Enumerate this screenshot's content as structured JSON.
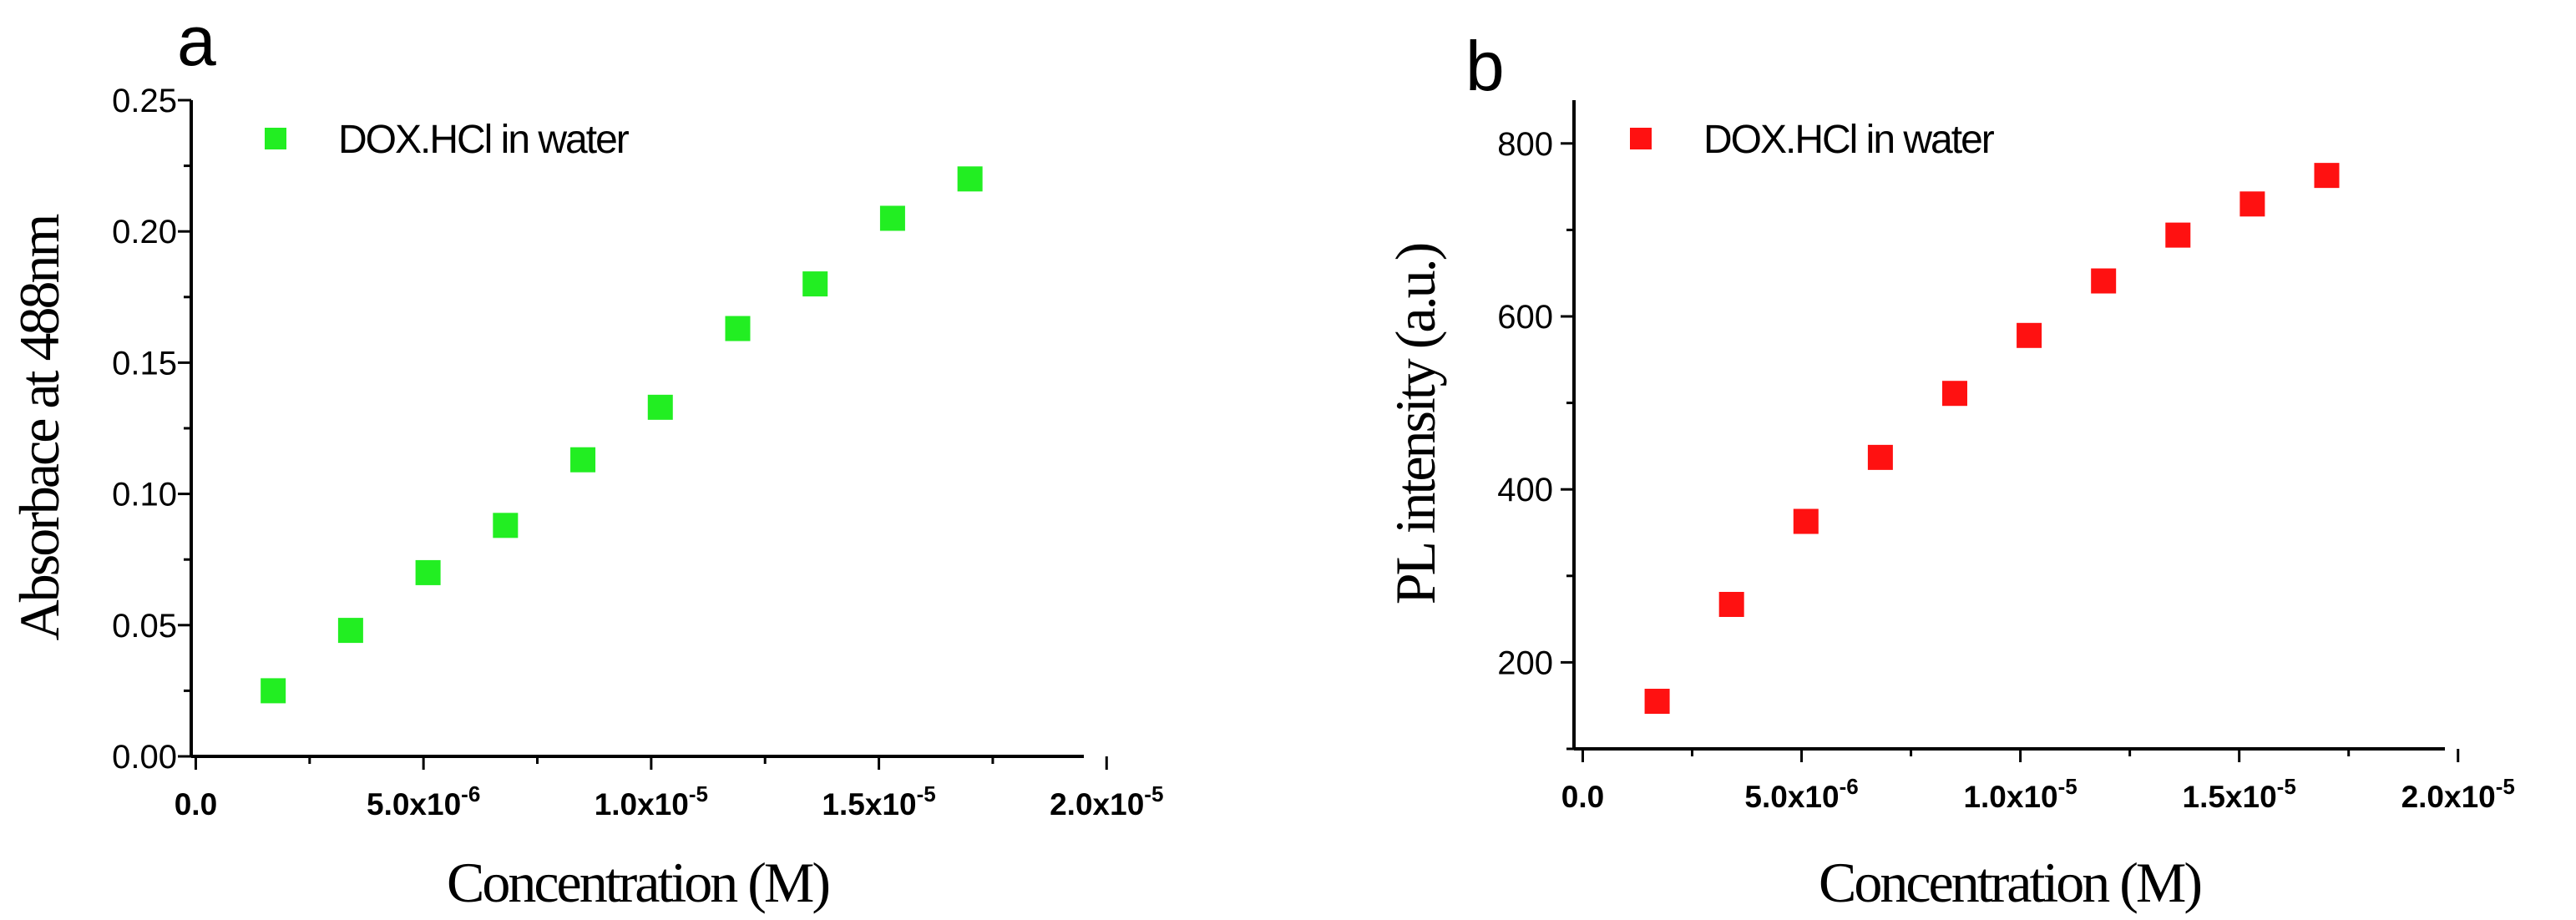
{
  "chart_data": [
    {
      "type": "scatter",
      "panel_label": "a",
      "title": "",
      "xlabel": "Concentration (M)",
      "ylabel": "Absorbace at 488nm",
      "xlim": [
        -1e-07,
        1.95e-05
      ],
      "ylim": [
        0,
        0.25
      ],
      "color": "#22ee22",
      "x_ticks": [
        {
          "value": 0,
          "label": "0.0",
          "base": "0.0",
          "exp": ""
        },
        {
          "value": 5e-06,
          "label": "5.0x10-6",
          "base": "5.0x10",
          "exp": "-6"
        },
        {
          "value": 1e-05,
          "label": "1.0x10-5",
          "base": "1.0x10",
          "exp": "-5"
        },
        {
          "value": 1.5e-05,
          "label": "1.5x10-5",
          "base": "1.5x10",
          "exp": "-5"
        },
        {
          "value": 2e-05,
          "label": "2.0x10-5",
          "base": "2.0x10",
          "exp": "-5"
        }
      ],
      "y_ticks": [
        "0.00",
        "0.05",
        "0.10",
        "0.15",
        "0.20",
        "0.25"
      ],
      "y_tick_values": [
        0,
        0.05,
        0.1,
        0.15,
        0.2,
        0.25
      ],
      "series": [
        {
          "name": "DOX.HCl in water",
          "x": [
            1.7e-06,
            3.4e-06,
            5.1e-06,
            6.8e-06,
            8.5e-06,
            1.02e-05,
            1.19e-05,
            1.36e-05,
            1.53e-05,
            1.7e-05
          ],
          "y": [
            0.025,
            0.048,
            0.07,
            0.088,
            0.113,
            0.133,
            0.163,
            0.18,
            0.205,
            0.22
          ]
        }
      ],
      "legend": "top-left"
    },
    {
      "type": "scatter",
      "panel_label": "b",
      "title": "",
      "xlabel": "Concentration (M)",
      "ylabel": "PL intensity (a.u.)",
      "xlim": [
        -2e-07,
        1.97e-05
      ],
      "ylim": [
        100,
        850
      ],
      "color": "#ff1111",
      "x_ticks": [
        {
          "value": 0,
          "label": "0.0",
          "base": "0.0",
          "exp": ""
        },
        {
          "value": 5e-06,
          "label": "5.0x10-6",
          "base": "5.0x10",
          "exp": "-6"
        },
        {
          "value": 1e-05,
          "label": "1.0x10-5",
          "base": "1.0x10",
          "exp": "-5"
        },
        {
          "value": 1.5e-05,
          "label": "1.5x10-5",
          "base": "1.5x10",
          "exp": "-5"
        },
        {
          "value": 2e-05,
          "label": "2.0x10-5",
          "base": "2.0x10",
          "exp": "-5"
        }
      ],
      "y_ticks": [
        "200",
        "400",
        "600",
        "800"
      ],
      "y_tick_values": [
        200,
        400,
        600,
        800
      ],
      "series": [
        {
          "name": "DOX.HCl in water",
          "x": [
            1.7e-06,
            3.4e-06,
            5.1e-06,
            6.8e-06,
            8.5e-06,
            1.02e-05,
            1.19e-05,
            1.36e-05,
            1.53e-05,
            1.7e-05
          ],
          "y": [
            155,
            267,
            363,
            437,
            511,
            578,
            641,
            694,
            730,
            763
          ]
        }
      ],
      "legend": "top-left"
    }
  ]
}
